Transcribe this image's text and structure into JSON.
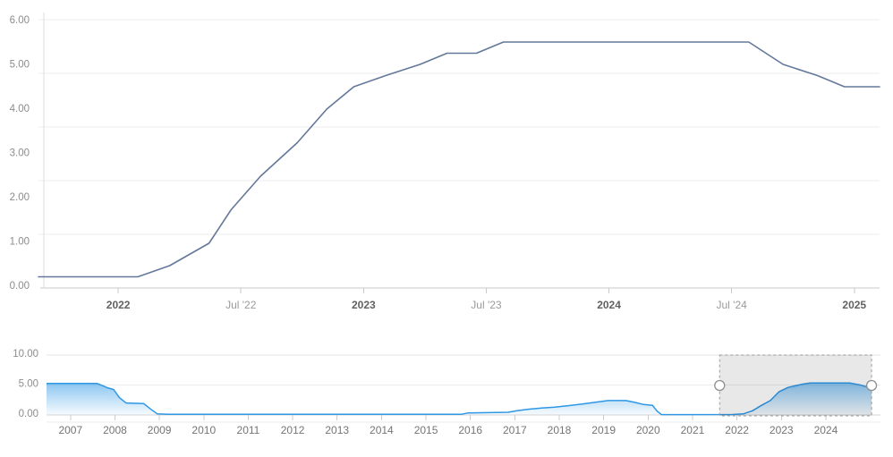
{
  "colors": {
    "background": "#ffffff",
    "main_line": "#64789a",
    "grid_line": "#ececec",
    "axis_line": "#c9c9c9",
    "y_axis_edge_line": "#dcdcdc",
    "navigator_line": "#2e97e6",
    "navigator_fill": "#2e97e6",
    "selection_mask": "rgba(0,0,0,0.09)",
    "selection_border": "#9a9a9a",
    "handle_fill": "#ffffff",
    "handle_border": "#8f8f8f"
  },
  "chart_data": [
    {
      "type": "line",
      "role": "main-price-chart",
      "grid": true,
      "legend": false,
      "y_axis": {
        "min": 0,
        "max": 6,
        "tick_labels": [
          "6.00",
          "5.00",
          "4.00",
          "3.00",
          "2.00",
          "1.00",
          "0.00"
        ]
      },
      "x_axis": {
        "min_year": 2021.675,
        "max_year": 2025.103,
        "ticks": [
          {
            "label": "2022",
            "year": 2022.0,
            "emphasis": true
          },
          {
            "label": "Jul '22",
            "year": 2022.5,
            "emphasis": false
          },
          {
            "label": "2023",
            "year": 2023.0,
            "emphasis": true
          },
          {
            "label": "Jul '23",
            "year": 2023.5,
            "emphasis": false
          },
          {
            "label": "2024",
            "year": 2024.0,
            "emphasis": true
          },
          {
            "label": "Jul '24",
            "year": 2024.5,
            "emphasis": false
          },
          {
            "label": "2025",
            "year": 2025.0,
            "emphasis": true
          }
        ]
      },
      "points": [
        [
          2021.675,
          0.25
        ],
        [
          2022.08,
          0.25
        ],
        [
          2022.21,
          0.5
        ],
        [
          2022.37,
          1.0
        ],
        [
          2022.46,
          1.75
        ],
        [
          2022.58,
          2.5
        ],
        [
          2022.73,
          3.25
        ],
        [
          2022.85,
          4.0
        ],
        [
          2022.96,
          4.5
        ],
        [
          2023.09,
          4.75
        ],
        [
          2023.23,
          5.0
        ],
        [
          2023.34,
          5.25
        ],
        [
          2023.46,
          5.25
        ],
        [
          2023.57,
          5.5
        ],
        [
          2024.57,
          5.5
        ],
        [
          2024.71,
          5.0
        ],
        [
          2024.85,
          4.75
        ],
        [
          2024.96,
          4.5
        ],
        [
          2025.103,
          4.5
        ]
      ]
    },
    {
      "type": "area",
      "role": "navigator-range-selector",
      "grid": true,
      "legend": false,
      "y_axis": {
        "min": 0,
        "max": 10,
        "tick_labels": [
          "10.00",
          "5.00",
          "0.00"
        ]
      },
      "x_axis": {
        "min_year": 2006.46,
        "max_year": 2025.23,
        "tick_labels": [
          "2007",
          "2008",
          "2009",
          "2010",
          "2011",
          "2012",
          "2013",
          "2014",
          "2015",
          "2016",
          "2017",
          "2018",
          "2019",
          "2020",
          "2021",
          "2022",
          "2023",
          "2024"
        ]
      },
      "points": [
        [
          2006.46,
          5.25
        ],
        [
          2007.6,
          5.25
        ],
        [
          2007.72,
          4.9
        ],
        [
          2007.85,
          4.5
        ],
        [
          2007.97,
          4.25
        ],
        [
          2008.1,
          2.9
        ],
        [
          2008.25,
          2.0
        ],
        [
          2008.65,
          1.9
        ],
        [
          2008.8,
          1.0
        ],
        [
          2008.95,
          0.2
        ],
        [
          2009.2,
          0.12
        ],
        [
          2015.8,
          0.12
        ],
        [
          2015.95,
          0.35
        ],
        [
          2016.85,
          0.45
        ],
        [
          2017.05,
          0.7
        ],
        [
          2017.3,
          0.95
        ],
        [
          2017.6,
          1.15
        ],
        [
          2017.9,
          1.3
        ],
        [
          2018.2,
          1.55
        ],
        [
          2018.5,
          1.8
        ],
        [
          2018.8,
          2.1
        ],
        [
          2019.1,
          2.4
        ],
        [
          2019.5,
          2.4
        ],
        [
          2019.7,
          2.1
        ],
        [
          2019.9,
          1.75
        ],
        [
          2020.1,
          1.6
        ],
        [
          2020.2,
          0.65
        ],
        [
          2020.3,
          0.06
        ],
        [
          2021.9,
          0.08
        ],
        [
          2022.15,
          0.2
        ],
        [
          2022.35,
          0.7
        ],
        [
          2022.55,
          1.6
        ],
        [
          2022.75,
          2.4
        ],
        [
          2022.95,
          3.9
        ],
        [
          2023.15,
          4.6
        ],
        [
          2023.45,
          5.1
        ],
        [
          2023.65,
          5.33
        ],
        [
          2024.55,
          5.33
        ],
        [
          2024.75,
          5.05
        ],
        [
          2024.95,
          4.65
        ],
        [
          2025.03,
          4.6
        ]
      ],
      "selection": {
        "start_year": 2021.61,
        "end_year": 2025.03
      }
    }
  ]
}
